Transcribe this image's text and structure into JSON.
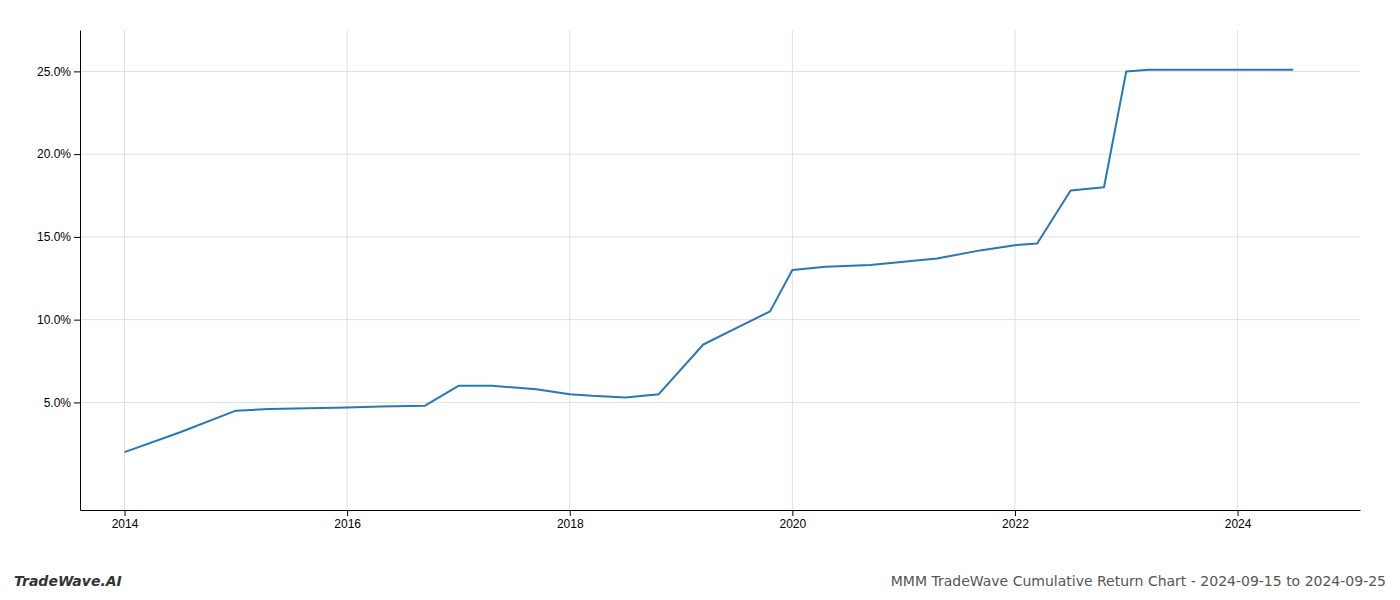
{
  "chart_data": {
    "type": "line",
    "title": "MMM TradeWave Cumulative Return Chart - 2024-09-15 to 2024-09-25",
    "annotations": [
      "TradeWave.AI"
    ],
    "x": [
      2014.0,
      2014.5,
      2015.0,
      2015.3,
      2016.0,
      2016.3,
      2016.7,
      2017.0,
      2017.3,
      2017.7,
      2018.0,
      2018.2,
      2018.5,
      2018.8,
      2019.2,
      2019.5,
      2019.8,
      2020.0,
      2020.3,
      2020.7,
      2021.0,
      2021.3,
      2021.7,
      2022.0,
      2022.2,
      2022.5,
      2022.8,
      2023.0,
      2023.2,
      2023.5,
      2023.7,
      2024.0,
      2024.5
    ],
    "values": [
      2.0,
      3.2,
      4.5,
      4.6,
      4.7,
      4.75,
      4.8,
      6.0,
      6.0,
      5.8,
      5.5,
      5.4,
      5.3,
      5.5,
      8.5,
      9.5,
      10.5,
      13.0,
      13.2,
      13.3,
      13.5,
      13.7,
      14.2,
      14.5,
      14.6,
      17.8,
      18.0,
      25.0,
      25.1,
      25.1,
      25.1,
      25.1,
      25.1
    ],
    "color": "#2878b5",
    "xlim": [
      2013.6,
      2025.1
    ],
    "ylim": [
      -1.5,
      27.5
    ],
    "xticks": [
      2014,
      2016,
      2018,
      2020,
      2022,
      2024
    ],
    "yticks": [
      {
        "value": 5.0,
        "label": "5.0%"
      },
      {
        "value": 10.0,
        "label": "10.0%"
      },
      {
        "value": 15.0,
        "label": "15.0%"
      },
      {
        "value": 20.0,
        "label": "20.0%"
      },
      {
        "value": 25.0,
        "label": "25.0%"
      }
    ],
    "grid": true
  }
}
